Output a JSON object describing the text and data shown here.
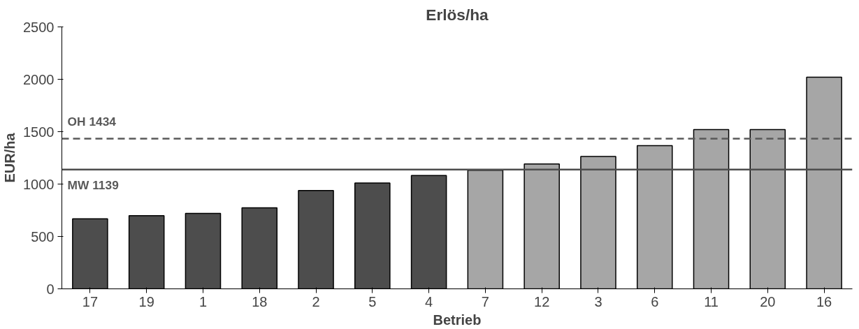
{
  "chart_data": {
    "type": "bar",
    "title": "Erlös/ha",
    "xlabel": "Betrieb",
    "ylabel": "EUR/ha",
    "categories": [
      "17",
      "19",
      "1",
      "18",
      "2",
      "5",
      "4",
      "7",
      "12",
      "3",
      "6",
      "11",
      "20",
      "16"
    ],
    "values": [
      668,
      698,
      720,
      773,
      938,
      1010,
      1082,
      1131,
      1192,
      1264,
      1366,
      1520,
      1520,
      2020
    ],
    "colors": [
      "#4d4d4d",
      "#4d4d4d",
      "#4d4d4d",
      "#4d4d4d",
      "#4d4d4d",
      "#4d4d4d",
      "#4d4d4d",
      "#a6a6a6",
      "#a6a6a6",
      "#a6a6a6",
      "#a6a6a6",
      "#a6a6a6",
      "#a6a6a6",
      "#a6a6a6"
    ],
    "ylim": [
      0,
      2500
    ],
    "yticks": [
      0,
      500,
      1000,
      1500,
      2000,
      2500
    ],
    "grid": false,
    "ref_lines": [
      {
        "axis": "y",
        "value": 1434,
        "label": "OH 1434",
        "color": "#595959",
        "line_style": "dashed"
      },
      {
        "axis": "y",
        "value": 1139,
        "label": "MW 1139",
        "color": "#4d4d4d",
        "line_style": "solid"
      }
    ]
  }
}
